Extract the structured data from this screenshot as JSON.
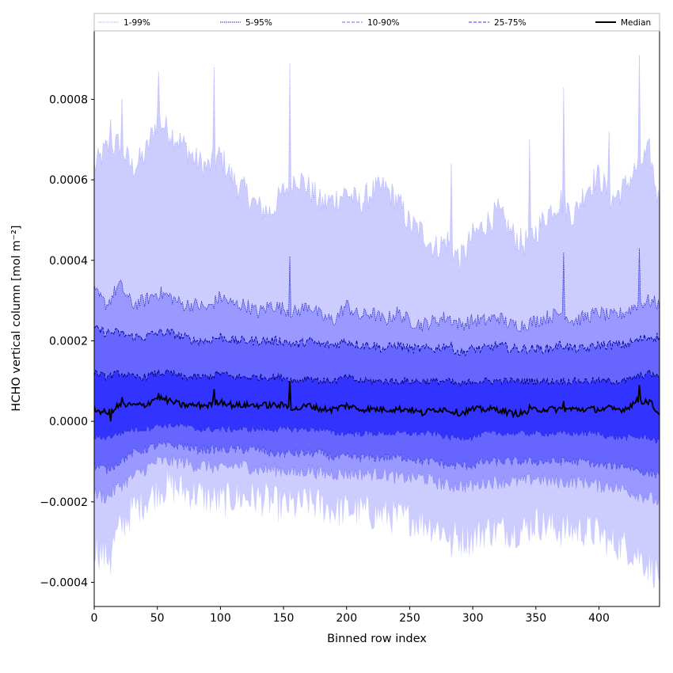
{
  "chart_data": {
    "type": "area",
    "title": "",
    "xlabel": "Binned row index",
    "ylabel": "HCHO vertical column [mol m⁻²]",
    "xlim": [
      0,
      448
    ],
    "ylim": [
      -0.00046,
      0.00097
    ],
    "x_ticks": [
      0,
      50,
      100,
      150,
      200,
      250,
      300,
      350,
      400
    ],
    "x_tick_labels": [
      "0",
      "50",
      "100",
      "150",
      "200",
      "250",
      "300",
      "350",
      "400"
    ],
    "y_ticks": [
      -0.0004,
      -0.0002,
      0.0,
      0.0002,
      0.0004,
      0.0006,
      0.0008
    ],
    "y_tick_labels": [
      "−0.0004",
      "−0.0002",
      "0.0000",
      "0.0002",
      "0.0004",
      "0.0006",
      "0.0008"
    ],
    "grid": false,
    "legend_position": "top, above plot, single row",
    "x": [
      0,
      10,
      20,
      30,
      40,
      50,
      60,
      70,
      80,
      90,
      100,
      110,
      120,
      130,
      140,
      150,
      160,
      170,
      180,
      190,
      200,
      210,
      220,
      230,
      240,
      250,
      260,
      270,
      280,
      290,
      300,
      310,
      320,
      330,
      340,
      350,
      360,
      370,
      380,
      390,
      400,
      410,
      420,
      430,
      440,
      447
    ],
    "bands": [
      {
        "name": "1-99%",
        "fill_color": "#ccccff",
        "line_color": "#b0b0ff",
        "upper": [
          0.00063,
          0.00068,
          0.00069,
          0.00063,
          0.00066,
          0.00075,
          0.00072,
          0.00069,
          0.00065,
          0.00063,
          0.00066,
          0.0006,
          0.00057,
          0.00053,
          0.00052,
          0.00057,
          0.00061,
          0.00058,
          0.00054,
          0.00055,
          0.00057,
          0.00054,
          0.00057,
          0.00058,
          0.00055,
          0.00049,
          0.00047,
          0.00043,
          0.00045,
          0.0004,
          0.00046,
          0.00049,
          0.00052,
          0.00047,
          0.00044,
          0.00047,
          0.00052,
          0.00055,
          0.00051,
          0.00058,
          0.00061,
          0.00055,
          0.00058,
          0.00063,
          0.00067,
          0.00055
        ],
        "lower": [
          -0.00031,
          -0.00034,
          -0.00027,
          -0.00022,
          -0.0002,
          -0.00017,
          -0.00016,
          -0.00017,
          -0.00018,
          -0.00019,
          -0.0002,
          -0.00019,
          -0.00019,
          -0.00019,
          -0.0002,
          -0.00021,
          -0.00021,
          -0.0002,
          -0.00021,
          -0.00022,
          -0.00022,
          -0.00022,
          -0.00023,
          -0.00023,
          -0.00024,
          -0.00024,
          -0.00025,
          -0.00026,
          -0.00028,
          -0.00029,
          -0.00029,
          -0.00027,
          -0.00027,
          -0.00027,
          -0.00027,
          -0.00025,
          -0.00026,
          -0.00027,
          -0.00027,
          -0.00027,
          -0.00028,
          -0.0003,
          -0.00031,
          -0.00033,
          -0.00036,
          -0.00038
        ]
      },
      {
        "name": "5-95%",
        "fill_color": "#9999ff",
        "line_color": "#2020c0",
        "upper": [
          0.00032,
          0.00029,
          0.00034,
          0.00029,
          0.0003,
          0.00032,
          0.00031,
          0.00029,
          0.00029,
          0.00028,
          0.00031,
          0.00029,
          0.00029,
          0.00027,
          0.00029,
          0.00028,
          0.00027,
          0.00029,
          0.00026,
          0.00025,
          0.00029,
          0.00026,
          0.00027,
          0.00025,
          0.00027,
          0.00025,
          0.00024,
          0.00025,
          0.00026,
          0.00024,
          0.00025,
          0.00025,
          0.00026,
          0.00024,
          0.00024,
          0.00025,
          0.00026,
          0.00027,
          0.00025,
          0.00026,
          0.00027,
          0.00026,
          0.00027,
          0.00029,
          0.0003,
          0.00029
        ],
        "lower": [
          -0.00018,
          -0.00019,
          -0.00016,
          -0.00014,
          -0.00012,
          -0.0001,
          -0.0001,
          -0.0001,
          -0.00011,
          -0.00011,
          -0.00012,
          -0.00011,
          -0.00011,
          -0.00012,
          -0.00012,
          -0.00012,
          -0.00013,
          -0.00012,
          -0.00013,
          -0.00013,
          -0.00013,
          -0.00013,
          -0.00013,
          -0.00013,
          -0.00014,
          -0.00014,
          -0.00014,
          -0.00015,
          -0.00016,
          -0.00016,
          -0.00016,
          -0.00015,
          -0.00015,
          -0.00015,
          -0.00015,
          -0.00014,
          -0.00015,
          -0.00015,
          -0.00015,
          -0.00015,
          -0.00016,
          -0.00016,
          -0.00017,
          -0.00018,
          -0.00019,
          -0.0002
        ]
      },
      {
        "name": "10-90%",
        "fill_color": "#6666ff",
        "line_color": "#000090",
        "upper": [
          0.00023,
          0.00022,
          0.00022,
          0.00021,
          0.00021,
          0.00022,
          0.00022,
          0.00021,
          0.0002,
          0.0002,
          0.00021,
          0.0002,
          0.0002,
          0.0002,
          0.0002,
          0.0002,
          0.00019,
          0.0002,
          0.00019,
          0.00019,
          0.0002,
          0.00019,
          0.00019,
          0.00018,
          0.00019,
          0.00018,
          0.00018,
          0.00018,
          0.00019,
          0.00017,
          0.00018,
          0.00018,
          0.00019,
          0.00018,
          0.00018,
          0.00018,
          0.00018,
          0.00019,
          0.00018,
          0.00018,
          0.00019,
          0.00019,
          0.00019,
          0.0002,
          0.00021,
          0.00021
        ],
        "lower": [
          -0.00011,
          -0.00012,
          -0.0001,
          -8e-05,
          -7e-05,
          -6e-05,
          -6e-05,
          -6e-05,
          -7e-05,
          -7e-05,
          -7e-05,
          -7e-05,
          -7e-05,
          -7e-05,
          -8e-05,
          -8e-05,
          -8e-05,
          -8e-05,
          -8e-05,
          -9e-05,
          -9e-05,
          -9e-05,
          -9e-05,
          -9e-05,
          -9e-05,
          -9e-05,
          -0.0001,
          -0.0001,
          -0.00011,
          -0.00011,
          -0.00011,
          -0.0001,
          -0.0001,
          -0.0001,
          -0.0001,
          -0.0001,
          -0.0001,
          -0.0001,
          -0.0001,
          -0.0001,
          -0.00011,
          -0.00011,
          -0.00011,
          -0.00012,
          -0.00013,
          -0.00013
        ]
      },
      {
        "name": "25-75%",
        "fill_color": "#3333ff",
        "line_color": "#000060",
        "upper": [
          0.00012,
          0.00011,
          0.00012,
          0.00011,
          0.00011,
          0.00012,
          0.00012,
          0.00011,
          0.00011,
          0.00011,
          0.00012,
          0.00011,
          0.00011,
          0.00011,
          0.00011,
          0.00011,
          0.0001,
          0.00011,
          0.0001,
          0.0001,
          0.00011,
          0.0001,
          0.0001,
          0.0001,
          0.0001,
          0.0001,
          0.0001,
          0.0001,
          0.0001,
          9e-05,
          0.0001,
          0.0001,
          0.0001,
          0.0001,
          0.0001,
          0.0001,
          0.0001,
          0.0001,
          0.0001,
          0.0001,
          0.0001,
          0.0001,
          0.0001,
          0.00011,
          0.00012,
          0.00011
        ],
        "lower": [
          -4e-05,
          -4e-05,
          -3e-05,
          -2e-05,
          -2e-05,
          -1e-05,
          -1e-05,
          -1e-05,
          -2e-05,
          -2e-05,
          -2e-05,
          -2e-05,
          -2e-05,
          -2e-05,
          -2e-05,
          -2e-05,
          -2e-05,
          -2e-05,
          -2e-05,
          -3e-05,
          -3e-05,
          -3e-05,
          -3e-05,
          -3e-05,
          -3e-05,
          -3e-05,
          -3e-05,
          -3e-05,
          -4e-05,
          -4e-05,
          -4e-05,
          -3e-05,
          -3e-05,
          -3e-05,
          -3e-05,
          -3e-05,
          -3e-05,
          -3e-05,
          -3e-05,
          -3e-05,
          -3e-05,
          -4e-05,
          -4e-05,
          -4e-05,
          -4e-05,
          -5e-05
        ]
      }
    ],
    "median": {
      "name": "Median",
      "line_color": "#000000",
      "values": [
        3e-05,
        2e-05,
        4e-05,
        4e-05,
        4e-05,
        6e-05,
        5e-05,
        4e-05,
        4e-05,
        4e-05,
        5e-05,
        4e-05,
        4e-05,
        4e-05,
        4e-05,
        4e-05,
        3e-05,
        4e-05,
        3e-05,
        3e-05,
        4e-05,
        3e-05,
        3e-05,
        3e-05,
        3e-05,
        3e-05,
        2e-05,
        3e-05,
        3e-05,
        2e-05,
        3e-05,
        3e-05,
        3e-05,
        2e-05,
        2e-05,
        3e-05,
        3e-05,
        3e-05,
        3e-05,
        3e-05,
        3e-05,
        3e-05,
        3e-05,
        5e-05,
        5e-05,
        2e-05
      ]
    },
    "spikes": [
      {
        "x": 51,
        "upper": 0.00087,
        "median": 7e-05
      },
      {
        "x": 95,
        "upper": 0.00088,
        "median": 8e-05
      },
      {
        "x": 155,
        "upper": 0.00089,
        "median": 0.0001,
        "band": 0.00041
      },
      {
        "x": 22,
        "upper": 0.0008,
        "median": 6e-05
      },
      {
        "x": 283,
        "upper": 0.00064,
        "median": 2e-05,
        "lower": -0.00034
      },
      {
        "x": 372,
        "upper": 0.00083,
        "median": 5e-05,
        "band": 0.00042
      },
      {
        "x": 345,
        "upper": 0.0007,
        "median": 4e-05
      },
      {
        "x": 432,
        "upper": 0.00091,
        "median": 9e-05,
        "band": 0.00043
      },
      {
        "x": 408,
        "upper": 0.00072,
        "median": 4e-05,
        "lower": -0.0003
      },
      {
        "x": 13,
        "upper": 0.00075,
        "median": 0.0,
        "lower": -0.00038
      }
    ]
  },
  "legend": {
    "items": [
      {
        "label": "1-99%",
        "color": "#b0b0ff",
        "style": "dotted"
      },
      {
        "label": "5-95%",
        "color": "#2020c0",
        "style": "dotted"
      },
      {
        "label": "10-90%",
        "color": "#6666ff",
        "style": "dashed"
      },
      {
        "label": "25-75%",
        "color": "#3333ff",
        "style": "dashed"
      },
      {
        "label": "Median",
        "color": "#000000",
        "style": "solid"
      }
    ]
  }
}
